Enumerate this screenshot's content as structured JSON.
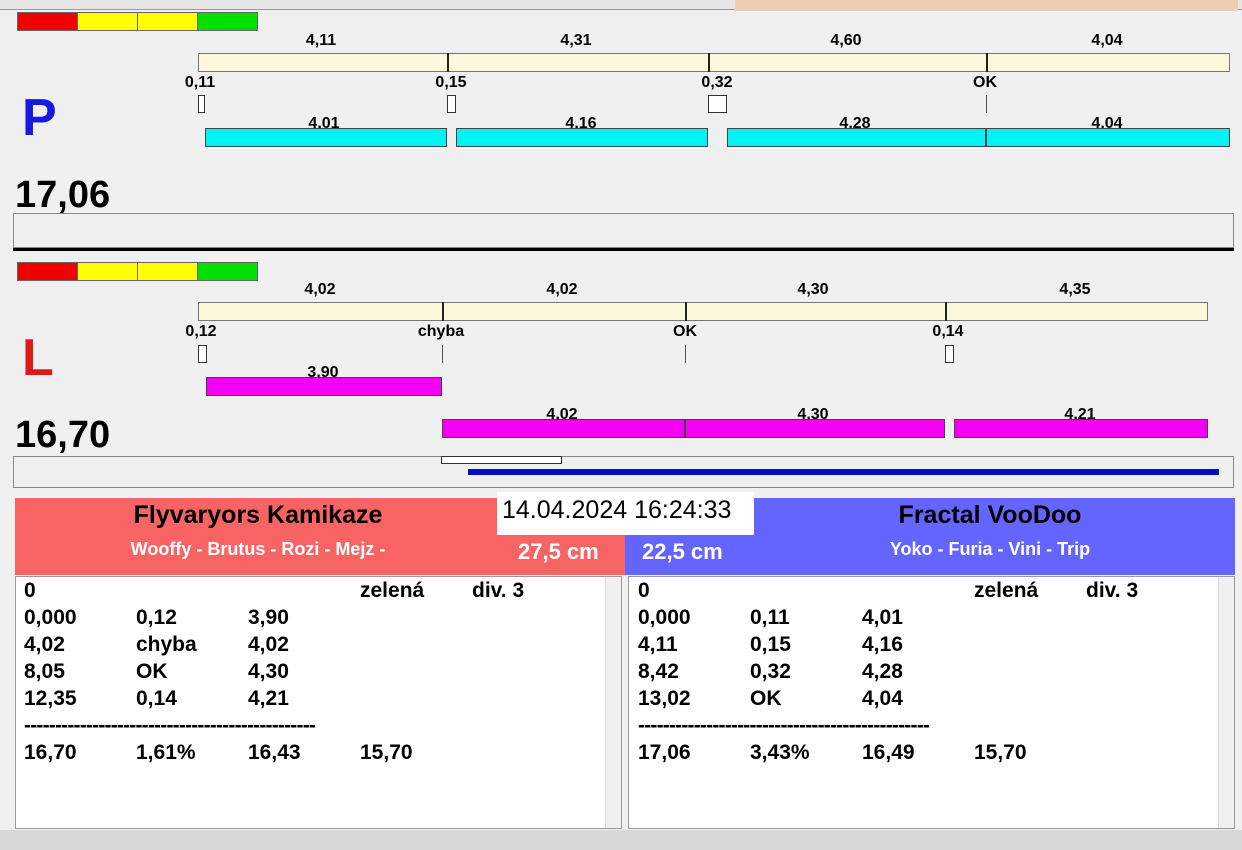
{
  "lanes": [
    {
      "label": "P",
      "total": "17,06",
      "top_labels": [
        "4,11",
        "4,31",
        "4,60",
        "4,04"
      ],
      "marker_labels": [
        "0,11",
        "0,15",
        "0,32",
        "OK"
      ],
      "bottom_labels": [
        "4,01",
        "4,16",
        "4,28",
        "4,04"
      ]
    },
    {
      "label": "L",
      "total": "16,70",
      "top_labels": [
        "4,02",
        "4,02",
        "4,30",
        "4,35"
      ],
      "marker_labels": [
        "0,12",
        "chyba",
        "OK",
        "0,14"
      ],
      "bottom_labels": [
        "3,90",
        "4,02",
        "4,30",
        "4,21"
      ]
    }
  ],
  "datetime": "14.04.2024 16:24:33",
  "teams": [
    {
      "name": "Flyvaryors Kamikaze",
      "dogs": "Wooffy - Brutus - Rozi - Mejz -",
      "height": "27,5 cm",
      "panel": {
        "header": {
          "number": "0",
          "color": "zelená",
          "division": "div. 3"
        },
        "rows": [
          [
            "0,000",
            "0,12",
            "3,90"
          ],
          [
            "4,02",
            "chyba",
            "4,02"
          ],
          [
            "8,05",
            "OK",
            "4,30"
          ],
          [
            "12,35",
            "0,14",
            "4,21"
          ]
        ],
        "separator": "-----------------------------------------------",
        "summary": [
          "16,70",
          "1,61%",
          "16,43",
          "15,70"
        ]
      }
    },
    {
      "name": "Fractal VooDoo",
      "dogs": "Yoko - Furia - Vini - Trip",
      "height": "22,5 cm",
      "panel": {
        "header": {
          "number": "0",
          "color": "zelená",
          "division": "div. 3"
        },
        "rows": [
          [
            "0,000",
            "0,11",
            "4,01"
          ],
          [
            "4,11",
            "0,15",
            "4,16"
          ],
          [
            "8,42",
            "0,32",
            "4,28"
          ],
          [
            "13,02",
            "OK",
            "4,04"
          ]
        ],
        "separator": "-----------------------------------------------",
        "summary": [
          "17,06",
          "3,43%",
          "16,49",
          "15,70"
        ]
      }
    }
  ]
}
